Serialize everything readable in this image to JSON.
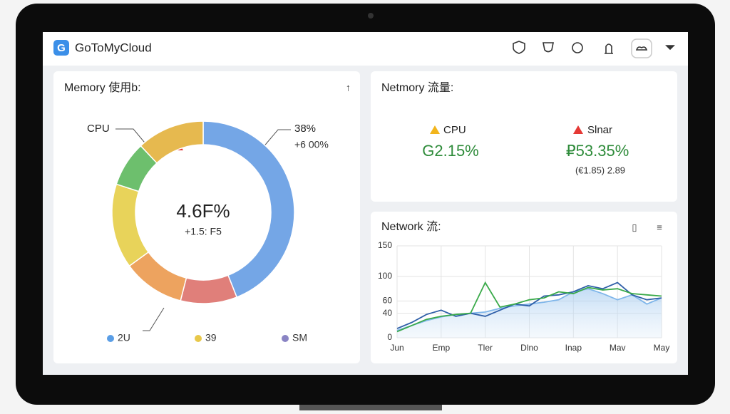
{
  "header": {
    "title": "GoToMyCloud"
  },
  "memory_panel": {
    "title": "Memory 使用b:",
    "callouts": [
      "CPU",
      "38%",
      "+6 00%"
    ],
    "center_value": "4.6F%",
    "center_label": "+1.5: F5"
  },
  "stats_panel": {
    "title": "Netmory 流量:",
    "stats": [
      {
        "label": "CPU",
        "value": "G2.15%"
      },
      {
        "label": "Slnar",
        "value": "₽53.35%",
        "sub": "(€1.85)  2.89"
      }
    ]
  },
  "chart_data": [
    {
      "type": "pie",
      "values": [
        44,
        10,
        11,
        15,
        8,
        12
      ],
      "colors": [
        "#74a6e6",
        "#e07f7a",
        "#eda35f",
        "#e8d35a",
        "#6dbf6d",
        "#e6b94f"
      ],
      "legend": [
        {
          "label": "2U",
          "color": "#5a9ee6"
        },
        {
          "label": "39",
          "color": "#e8c84a"
        },
        {
          "label": "SM",
          "color": "#8a84c4"
        }
      ]
    },
    {
      "type": "line",
      "title": "Network 流:",
      "x": [
        0,
        1,
        2,
        3,
        4,
        5,
        6,
        7,
        8,
        9,
        10,
        11,
        12,
        13,
        14,
        15,
        16,
        17,
        18
      ],
      "xlim": [
        0,
        18
      ],
      "xticks": [
        {
          "value": 0,
          "label": "Jun"
        },
        {
          "value": 3,
          "label": "Emp"
        },
        {
          "value": 6,
          "label": "Tler"
        },
        {
          "value": 9,
          "label": "Dlno"
        },
        {
          "value": 12,
          "label": "Inap"
        },
        {
          "value": 15,
          "label": "Mav"
        },
        {
          "value": 18,
          "label": "May"
        }
      ],
      "ylim": [
        0,
        150
      ],
      "yticks": [
        0,
        40,
        60,
        100,
        150
      ],
      "grid": true,
      "series": [
        {
          "name": "area",
          "color": "#7fb6ea",
          "values": [
            12,
            20,
            28,
            34,
            38,
            40,
            42,
            48,
            52,
            55,
            58,
            62,
            75,
            80,
            72,
            62,
            70,
            55,
            65
          ]
        },
        {
          "name": "blue",
          "color": "#2f5fa8",
          "values": [
            15,
            25,
            38,
            45,
            35,
            40,
            35,
            45,
            55,
            52,
            68,
            70,
            75,
            85,
            80,
            90,
            70,
            62,
            65
          ]
        },
        {
          "name": "green",
          "color": "#3aaa4a",
          "values": [
            10,
            20,
            30,
            35,
            38,
            40,
            90,
            50,
            55,
            62,
            65,
            75,
            72,
            82,
            78,
            80,
            72,
            70,
            68
          ]
        }
      ]
    }
  ]
}
